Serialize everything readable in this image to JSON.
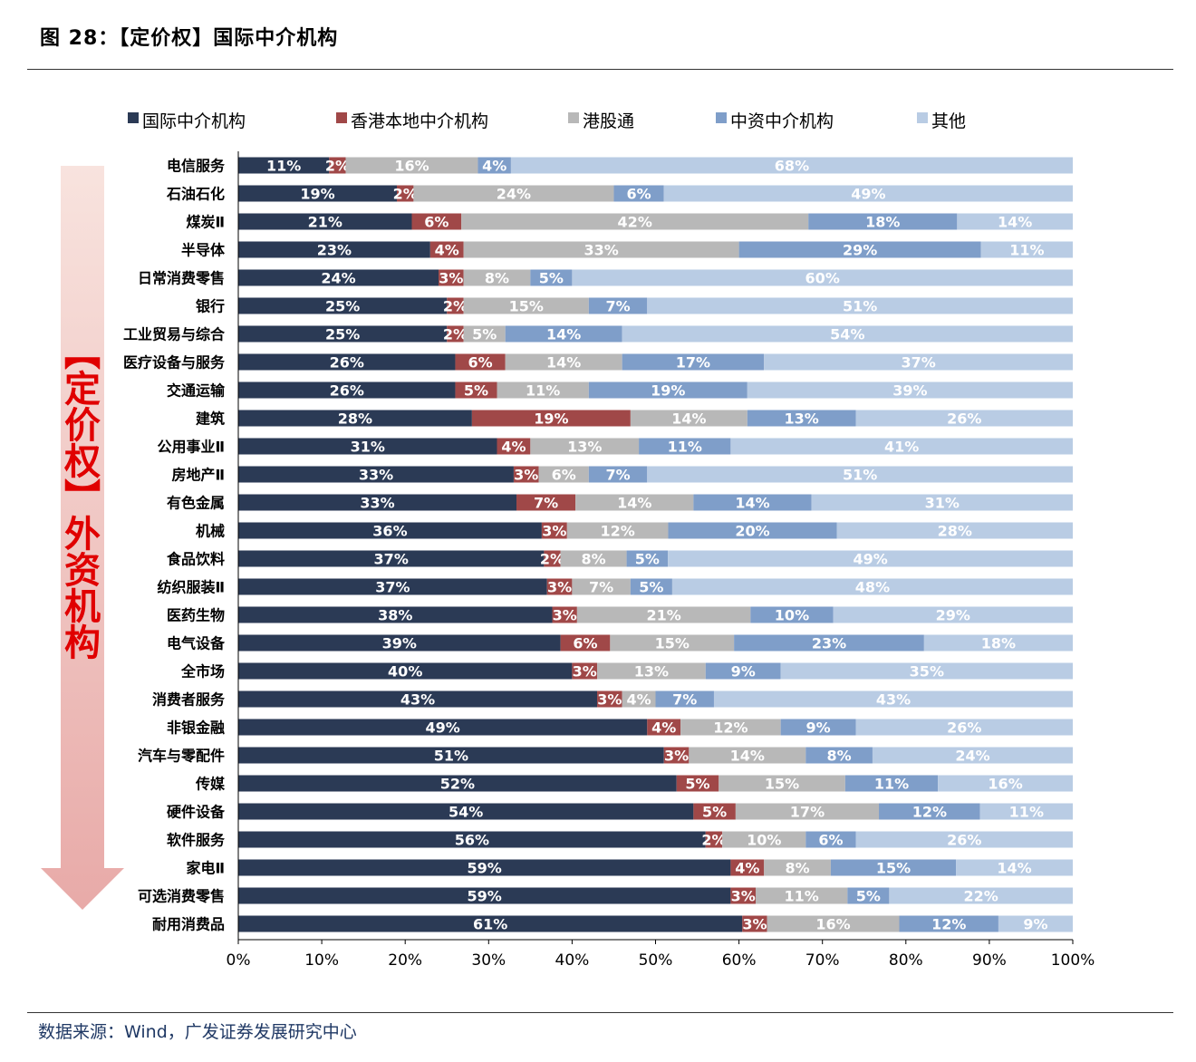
{
  "figure": {
    "title": "图 28：【定价权】国际中介机构",
    "source": "数据来源：Wind，广发证券发展研究中心",
    "side_label": "【定价权】外资机构"
  },
  "colors": {
    "series": [
      "#2b3a55",
      "#a04848",
      "#b8b8b8",
      "#7f9ec9",
      "#b9cce4"
    ],
    "label_text": "#ffffff",
    "axis": "#000000",
    "side_label": "#e00000",
    "arrow_top": "#f8e3de",
    "arrow_bottom": "#e8aaa8"
  },
  "chart_data": {
    "type": "bar",
    "orientation": "horizontal",
    "stacked": true,
    "percent_stacked": true,
    "xlim": [
      0,
      100
    ],
    "x_ticks": [
      "0%",
      "10%",
      "20%",
      "30%",
      "40%",
      "50%",
      "60%",
      "70%",
      "80%",
      "90%",
      "100%"
    ],
    "legend_position": "top",
    "series_names": [
      "国际中介机构",
      "香港本地中介机构",
      "港股通",
      "中资中介机构",
      "其他"
    ],
    "categories": [
      "电信服务",
      "石油石化",
      "煤炭Ⅱ",
      "半导体",
      "日常消费零售",
      "银行",
      "工业贸易与综合",
      "医疗设备与服务",
      "交通运输",
      "建筑",
      "公用事业Ⅱ",
      "房地产Ⅱ",
      "有色金属",
      "机械",
      "食品饮料",
      "纺织服装Ⅱ",
      "医药生物",
      "电气设备",
      "全市场",
      "消费者服务",
      "非银金融",
      "汽车与零配件",
      "传媒",
      "硬件设备",
      "软件服务",
      "家电Ⅱ",
      "可选消费零售",
      "耐用消费品"
    ],
    "values": [
      [
        11,
        2,
        16,
        4,
        68
      ],
      [
        19,
        2,
        24,
        6,
        49
      ],
      [
        21,
        6,
        42,
        18,
        14
      ],
      [
        23,
        4,
        33,
        29,
        11
      ],
      [
        24,
        3,
        8,
        5,
        60
      ],
      [
        25,
        2,
        15,
        7,
        51
      ],
      [
        25,
        2,
        5,
        14,
        54
      ],
      [
        26,
        6,
        14,
        17,
        37
      ],
      [
        26,
        5,
        11,
        19,
        39
      ],
      [
        28,
        19,
        14,
        13,
        26
      ],
      [
        31,
        4,
        13,
        11,
        41
      ],
      [
        33,
        3,
        6,
        7,
        51
      ],
      [
        33,
        7,
        14,
        14,
        31
      ],
      [
        36,
        3,
        12,
        20,
        28
      ],
      [
        37,
        2,
        8,
        5,
        49
      ],
      [
        37,
        3,
        7,
        5,
        48
      ],
      [
        38,
        3,
        21,
        10,
        29
      ],
      [
        39,
        6,
        15,
        23,
        18
      ],
      [
        40,
        3,
        13,
        9,
        35
      ],
      [
        43,
        3,
        4,
        7,
        43
      ],
      [
        49,
        4,
        12,
        9,
        26
      ],
      [
        51,
        3,
        14,
        8,
        24
      ],
      [
        52,
        5,
        15,
        11,
        16
      ],
      [
        54,
        5,
        17,
        12,
        11
      ],
      [
        56,
        2,
        10,
        6,
        26
      ],
      [
        59,
        4,
        8,
        15,
        14
      ],
      [
        59,
        3,
        11,
        5,
        22
      ],
      [
        61,
        3,
        16,
        12,
        9
      ]
    ]
  }
}
